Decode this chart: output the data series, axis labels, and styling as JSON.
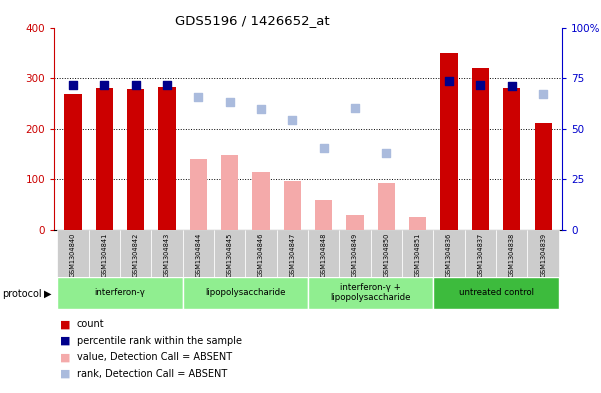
{
  "title": "GDS5196 / 1426652_at",
  "samples": [
    "GSM1304840",
    "GSM1304841",
    "GSM1304842",
    "GSM1304843",
    "GSM1304844",
    "GSM1304845",
    "GSM1304846",
    "GSM1304847",
    "GSM1304848",
    "GSM1304849",
    "GSM1304850",
    "GSM1304851",
    "GSM1304836",
    "GSM1304837",
    "GSM1304838",
    "GSM1304839"
  ],
  "count_values": [
    268,
    280,
    278,
    283,
    null,
    null,
    null,
    null,
    null,
    null,
    null,
    null,
    350,
    320,
    280,
    212
  ],
  "count_absent_values": [
    null,
    null,
    null,
    null,
    140,
    148,
    115,
    97,
    60,
    30,
    92,
    25,
    null,
    null,
    null,
    null
  ],
  "percentile_present": [
    287,
    287,
    287,
    287,
    null,
    null,
    null,
    null,
    null,
    null,
    null,
    null,
    295,
    287,
    285,
    null
  ],
  "percentile_absent": [
    null,
    null,
    null,
    null,
    262,
    252,
    238,
    218,
    162,
    240,
    152,
    null,
    null,
    null,
    null,
    268
  ],
  "groups": [
    {
      "label": "interferon-γ",
      "start": 0,
      "end": 4,
      "color": "#90EE90"
    },
    {
      "label": "lipopolysaccharide",
      "start": 4,
      "end": 8,
      "color": "#90EE90"
    },
    {
      "label": "interferon-γ +\nlipopolysaccharide",
      "start": 8,
      "end": 12,
      "color": "#90EE90"
    },
    {
      "label": "untreated control",
      "start": 12,
      "end": 16,
      "color": "#3DBB3D"
    }
  ],
  "ylim_left": [
    0,
    400
  ],
  "ylim_right": [
    0,
    100
  ],
  "yticks_left": [
    0,
    100,
    200,
    300,
    400
  ],
  "yticks_right": [
    0,
    25,
    50,
    75,
    100
  ],
  "ytick_labels_right": [
    "0",
    "25",
    "50",
    "75",
    "100%"
  ],
  "bar_width": 0.55,
  "dot_size": 28,
  "colors": {
    "count_present_bar": "#CC0000",
    "count_absent_bar": "#F4AAAA",
    "percentile_present_dot": "#00008B",
    "percentile_absent_dot": "#AABBDD",
    "axis_left": "#CC0000",
    "axis_right": "#0000CC",
    "tick_label_bg": "#CCCCCC"
  },
  "legend_items": [
    {
      "color": "#CC0000",
      "label": "count"
    },
    {
      "color": "#00008B",
      "label": "percentile rank within the sample"
    },
    {
      "color": "#F4AAAA",
      "label": "value, Detection Call = ABSENT"
    },
    {
      "color": "#AABBDD",
      "label": "rank, Detection Call = ABSENT"
    }
  ]
}
